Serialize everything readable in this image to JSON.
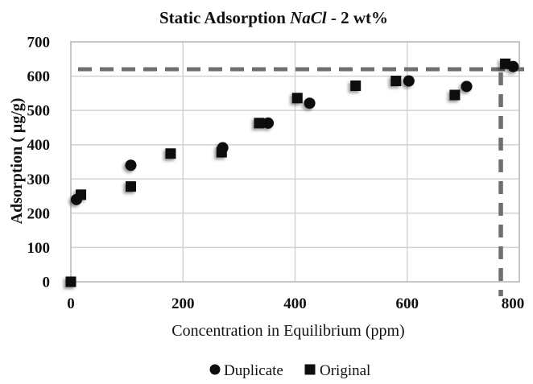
{
  "figure": {
    "title": {
      "prefix": "Static Adsorption ",
      "italic": "NaCl",
      "suffix": " - 2 wt%",
      "full": "Static Adsorption NaCl - 2 wt%"
    },
    "x_axis": {
      "label": "Concentration in Equilibrium (ppm)",
      "ticks": [
        "0",
        "200",
        "400",
        "600",
        "800"
      ],
      "min": 0,
      "max": 800
    },
    "y_axis": {
      "label": "Adsorption ( μg/g)",
      "ticks": [
        "0",
        "100",
        "200",
        "300",
        "400",
        "500",
        "600",
        "700"
      ],
      "min": 0,
      "max": 700
    },
    "legend": {
      "items": [
        {
          "label": "Duplicate",
          "marker": "circle"
        },
        {
          "label": "Original",
          "marker": "square"
        }
      ]
    }
  },
  "chart_data": {
    "type": "scatter",
    "title": "Static Adsorption NaCl - 2 wt%",
    "xlabel": "Concentration in Equilibrium (ppm)",
    "ylabel": "Adsorption ( μg/g)",
    "xlim": [
      0,
      800
    ],
    "ylim": [
      0,
      700
    ],
    "x_tick_interval": 200,
    "y_tick_interval": 100,
    "grid": true,
    "legend_position": "bottom",
    "series": [
      {
        "name": "Duplicate",
        "marker": "circle",
        "points": [
          [
            10,
            240
          ],
          [
            107,
            340
          ],
          [
            271,
            391
          ],
          [
            352,
            463
          ],
          [
            426,
            521
          ],
          [
            603,
            586
          ],
          [
            706,
            570
          ],
          [
            789,
            628
          ]
        ]
      },
      {
        "name": "Original",
        "marker": "square",
        "points": [
          [
            0,
            0
          ],
          [
            18,
            254
          ],
          [
            107,
            278
          ],
          [
            178,
            374
          ],
          [
            269,
            378
          ],
          [
            336,
            463
          ],
          [
            404,
            536
          ],
          [
            508,
            572
          ],
          [
            580,
            586
          ],
          [
            685,
            545
          ],
          [
            775,
            636
          ]
        ]
      }
    ],
    "annotations": {
      "dashed_horizontal_y": 620,
      "dashed_vertical_x": 767,
      "line_style": "dashed"
    },
    "colors": {
      "marker": "#0d0d0d",
      "gridline": "#d2d2d2",
      "plot_border": "#c6c6c6",
      "dashed_line": "#6f6f6f",
      "background": "#ffffff",
      "text": "#111111"
    }
  }
}
